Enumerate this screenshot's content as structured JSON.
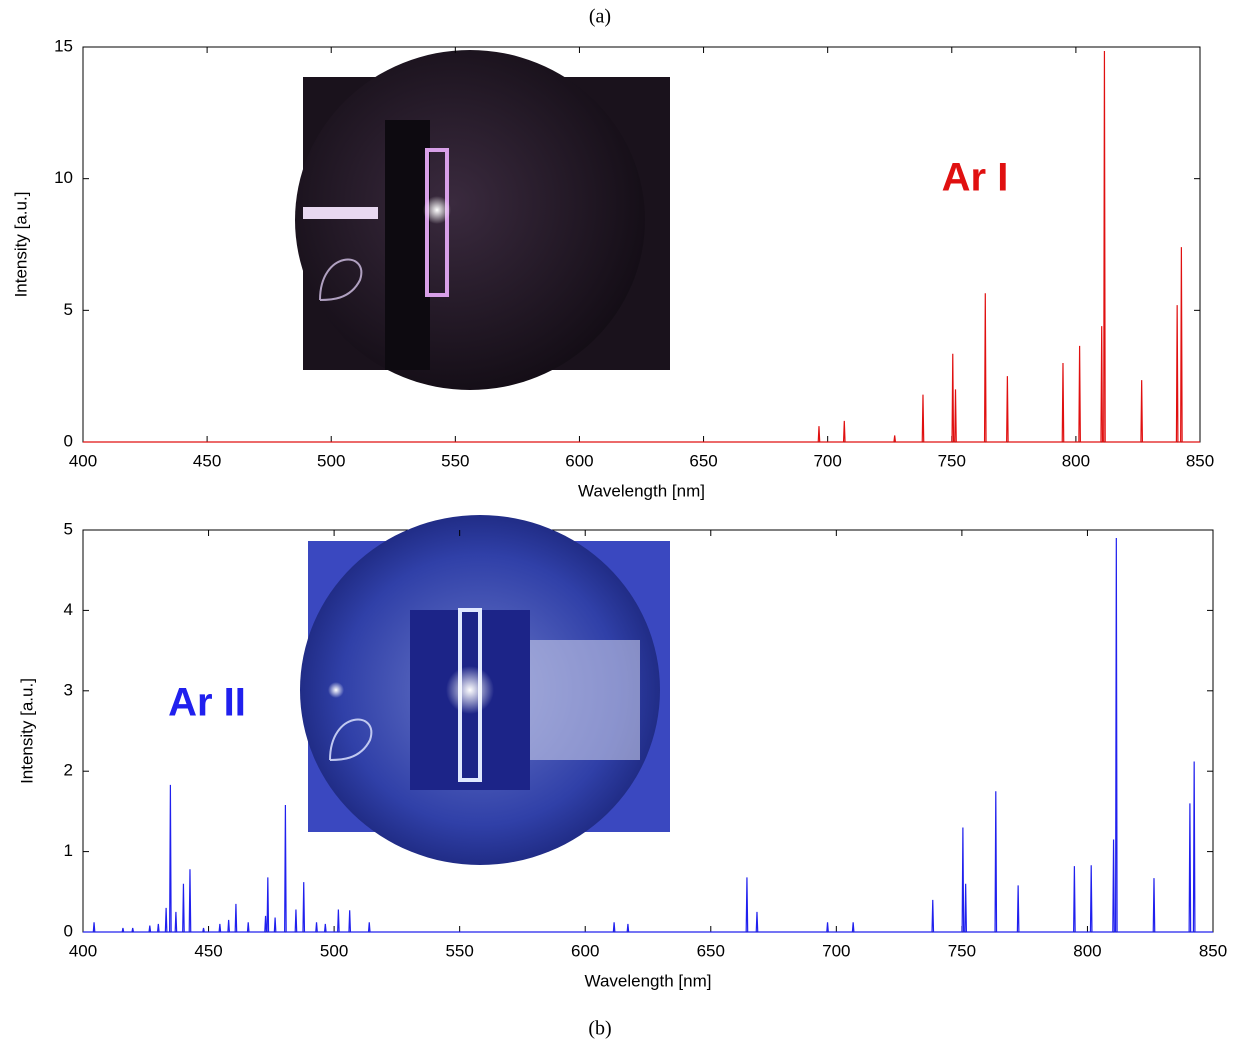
{
  "chart_data": [
    {
      "type": "line",
      "title": "(a)",
      "annotation": "Ar I",
      "color": "#e01010",
      "x_label": "Wavelength [nm]",
      "y_label": "Intensity [a.u.]",
      "xlim": [
        400,
        850
      ],
      "xticks": [
        400,
        450,
        500,
        550,
        600,
        650,
        700,
        750,
        800,
        850
      ],
      "ylim": [
        0,
        15
      ],
      "yticks": [
        0,
        5,
        10,
        15
      ],
      "grid": false,
      "x": [
        400,
        696.2,
        696.5,
        696.8,
        706.4,
        706.7,
        707.0,
        726.7,
        727,
        727.3,
        738.1,
        738.4,
        738.7,
        750.1,
        750.4,
        750.7,
        751.2,
        751.5,
        751.8,
        763.2,
        763.5,
        763.8,
        772.1,
        772.4,
        772.7,
        794.5,
        794.8,
        795.1,
        801.2,
        801.5,
        801.8,
        810.1,
        810.4,
        810.7,
        811.2,
        811.5,
        811.8,
        826.2,
        826.5,
        826.8,
        840.5,
        840.8,
        841.1,
        842.2,
        842.5,
        842.8,
        850
      ],
      "values": [
        0,
        0,
        0.6,
        0,
        0,
        0.8,
        0,
        0,
        0.25,
        0,
        0,
        1.8,
        0,
        0,
        3.35,
        0,
        0,
        2.0,
        0,
        0,
        5.65,
        0,
        0,
        2.5,
        0,
        0,
        3.0,
        0,
        0,
        3.65,
        0,
        0,
        4.4,
        0,
        0,
        14.85,
        0,
        0,
        2.35,
        0,
        0,
        5.2,
        0,
        0,
        7.4,
        0,
        0
      ]
    },
    {
      "type": "line",
      "title": "(b)",
      "annotation": "Ar II",
      "color": "#2020ee",
      "x_label": "Wavelength [nm]",
      "y_label": "Intensity [a.u.]",
      "xlim": [
        400,
        850
      ],
      "xticks": [
        400,
        450,
        500,
        550,
        600,
        650,
        700,
        750,
        800,
        850
      ],
      "ylim": [
        0,
        5
      ],
      "yticks": [
        0,
        1,
        2,
        3,
        4,
        5
      ],
      "grid": false,
      "x": [
        400,
        404.1,
        404.4,
        404.7,
        415.6,
        415.9,
        416.2,
        419.5,
        419.8,
        420.1,
        426.3,
        426.6,
        426.9,
        429.7,
        430,
        430.3,
        432.8,
        433.1,
        433.4,
        434.5,
        434.8,
        435.1,
        436.7,
        437,
        437.3,
        439.7,
        440,
        440.3,
        442.3,
        442.6,
        442.9,
        447.7,
        448,
        448.3,
        454.2,
        454.5,
        454.8,
        457.7,
        458,
        458.3,
        460.6,
        460.9,
        461.2,
        465.5,
        465.8,
        466.1,
        472.4,
        472.7,
        473.0,
        473.3,
        473.6,
        473.9,
        476.2,
        476.5,
        476.8,
        480.3,
        480.6,
        480.9,
        484.5,
        484.8,
        485.1,
        487.6,
        487.9,
        488.2,
        492.7,
        493,
        493.3,
        496.2,
        496.5,
        496.8,
        501.4,
        501.7,
        502.0,
        505.9,
        506.2,
        506.5,
        513.7,
        514,
        514.3,
        611.2,
        611.5,
        611.8,
        616.7,
        617,
        617.3,
        664.1,
        664.4,
        664.7,
        668.1,
        668.4,
        668.7,
        696.2,
        696.5,
        696.8,
        706.4,
        706.7,
        707.0,
        738.1,
        738.4,
        738.7,
        750.1,
        750.4,
        750.7,
        751.2,
        751.5,
        751.8,
        763.2,
        763.5,
        763.8,
        772.1,
        772.4,
        772.7,
        794.5,
        794.8,
        795.1,
        801.2,
        801.5,
        801.8,
        810.1,
        810.4,
        810.7,
        811.2,
        811.5,
        811.8,
        826.2,
        826.5,
        826.8,
        840.5,
        840.8,
        841.1,
        842.2,
        842.5,
        842.8,
        850
      ],
      "values": [
        0,
        0,
        0.12,
        0,
        0,
        0.05,
        0,
        0,
        0.05,
        0,
        0,
        0.08,
        0,
        0,
        0.1,
        0,
        0,
        0.3,
        0,
        0,
        1.83,
        0,
        0,
        0.25,
        0,
        0,
        0.6,
        0,
        0,
        0.78,
        0,
        0,
        0.05,
        0,
        0,
        0.1,
        0,
        0,
        0.15,
        0,
        0,
        0.35,
        0,
        0,
        0.12,
        0,
        0,
        0.2,
        0,
        0,
        0.68,
        0,
        0,
        0.18,
        0,
        0,
        1.58,
        0,
        0,
        0.28,
        0,
        0,
        0.62,
        0,
        0,
        0.12,
        0,
        0,
        0.1,
        0,
        0,
        0.28,
        0,
        0,
        0.27,
        0,
        0,
        0.12,
        0,
        0,
        0.12,
        0,
        0,
        0.1,
        0,
        0,
        0.68,
        0,
        0,
        0.25,
        0,
        0,
        0.12,
        0,
        0,
        0.12,
        0,
        0,
        0.4,
        0,
        0,
        1.3,
        0,
        0,
        0.6,
        0,
        0,
        1.75,
        0,
        0,
        0.58,
        0,
        0,
        0.82,
        0,
        0,
        0.83,
        0,
        0,
        1.15,
        0,
        0,
        4.9,
        0,
        0,
        0.67,
        0,
        0,
        1.6,
        0,
        0,
        2.12,
        0,
        0
      ]
    }
  ]
}
